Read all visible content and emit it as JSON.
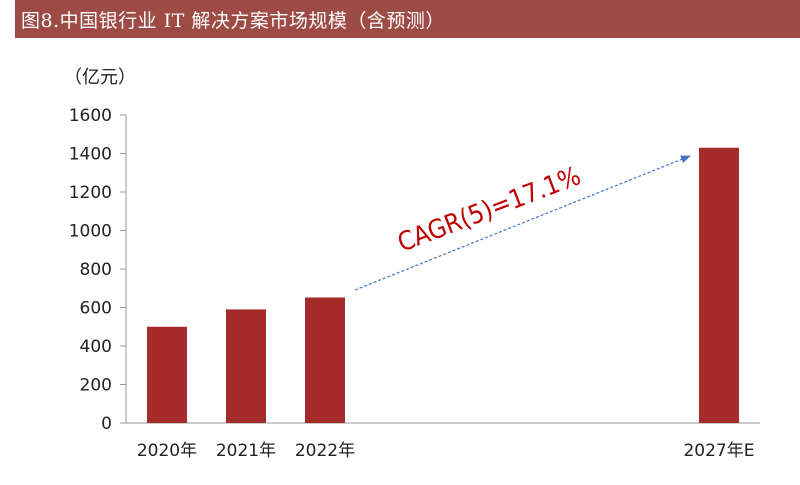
{
  "header": {
    "title": "图8.中国银行业 IT 解决方案市场规模（含预测）"
  },
  "chart_data": {
    "type": "bar",
    "title": "图8.中国银行业 IT 解决方案市场规模（含预测）",
    "unit": "（亿元）",
    "categories": [
      "2020年",
      "2021年",
      "2022年",
      "2027年E"
    ],
    "values": [
      500,
      590,
      652,
      1430
    ],
    "ylim": [
      0,
      1600
    ],
    "yticks": [
      0,
      200,
      400,
      600,
      800,
      1000,
      1200,
      1400,
      1600
    ],
    "grid": false,
    "legend": "none",
    "bar_color": "#a52a2a",
    "annotation": {
      "text": "CAGR(5)=17.1%",
      "color": "#c00000",
      "arrow_color": "#4472c4"
    }
  }
}
